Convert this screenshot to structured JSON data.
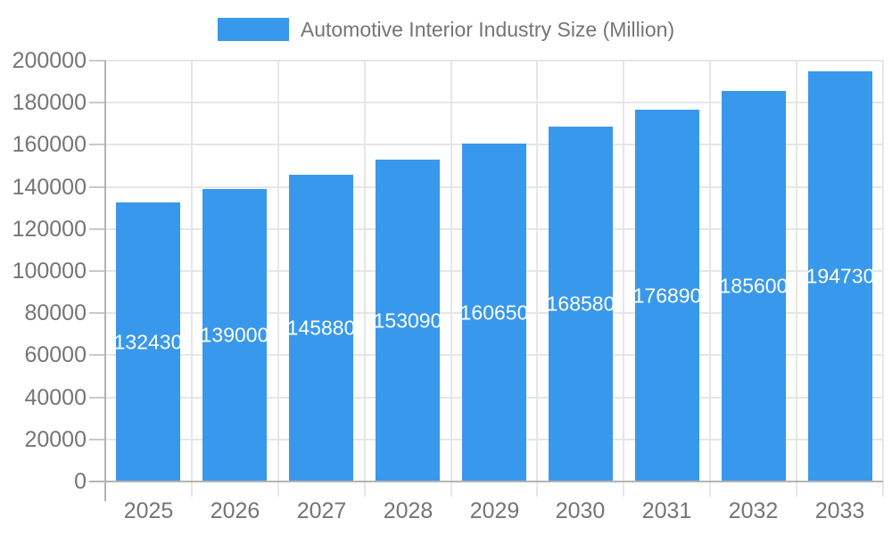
{
  "legend": {
    "label": "Automotive Interior Industry Size (Million)"
  },
  "colors": {
    "bar": "#3898ec",
    "axis_text": "#757575",
    "annotation_text": "#ffffff",
    "gridline": "#e6e6e6",
    "axis_line": "#b3b3b3",
    "tick": "#c9c9c9",
    "background": "#ffffff"
  },
  "chart_data": {
    "type": "bar",
    "title": "Automotive Interior Industry Size (Million)",
    "series_name": "Automotive Interior Industry Size (Million)",
    "categories": [
      "2025",
      "2026",
      "2027",
      "2028",
      "2029",
      "2030",
      "2031",
      "2032",
      "2033"
    ],
    "values": [
      132430,
      139000,
      145880,
      153090,
      160650,
      168580,
      176890,
      185600,
      194730
    ],
    "annotation_labels": [
      "132430",
      "139000",
      "145880",
      "153090",
      "160650",
      "168580",
      "176890",
      "185600",
      "194730"
    ],
    "xlabel": "",
    "ylabel": "",
    "ylim": [
      0,
      200000
    ],
    "ytick_step": 20000,
    "yticks": [
      "0",
      "20000",
      "40000",
      "60000",
      "80000",
      "100000",
      "120000",
      "140000",
      "160000",
      "180000",
      "200000"
    ],
    "grid": true,
    "legend_position": "top",
    "annotations": "inside-center"
  }
}
